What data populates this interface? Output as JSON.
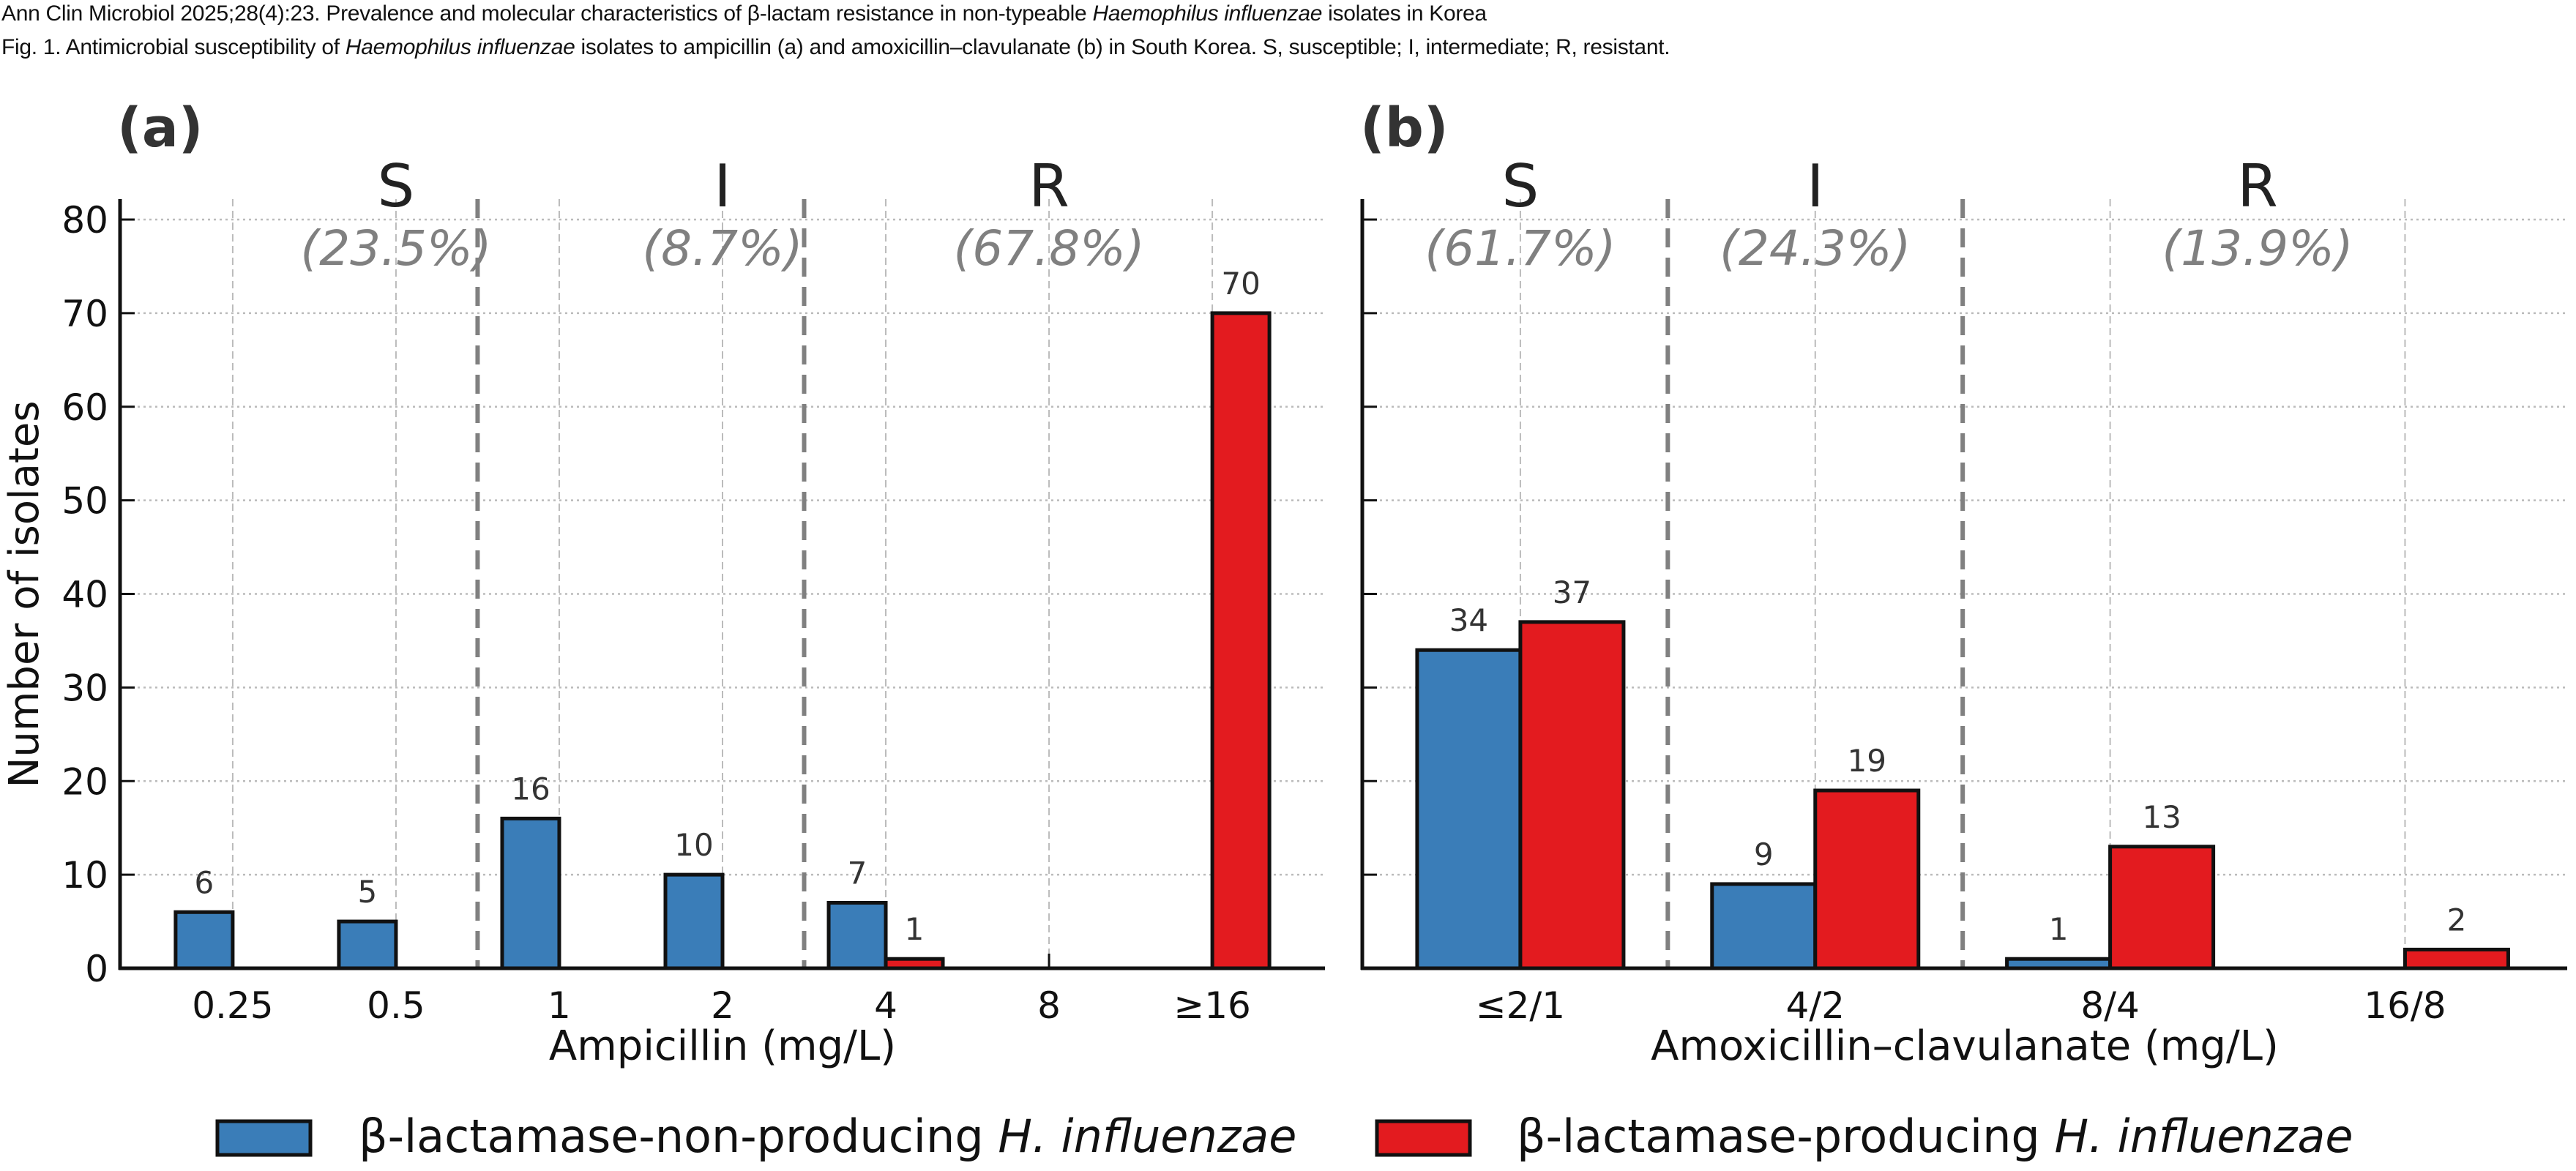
{
  "header": {
    "line1_prefix": "Ann Clin Microbiol 2025;28(4):23. Prevalence and molecular characteristics of β-lactam resistance in non-typeable ",
    "line1_italic": "Haemophilus influenzae",
    "line1_suffix": " isolates in Korea",
    "line2_prefix": "Fig. 1. Antimicrobial susceptibility of ",
    "line2_italic": "Haemophilus influenzae",
    "line2_suffix": " isolates to ampicillin (a) and amoxicillin–clavulanate (b) in South Korea. S, susceptible; I, intermediate; R, resistant."
  },
  "colors": {
    "non_producing": "#3a7db8",
    "producing": "#e31b1f",
    "bar_edge": "#111111",
    "category_label": "#222222",
    "percent_label": "#808080",
    "breakpoint_line": "#808080",
    "grid": "#bbbbbb"
  },
  "legend": {
    "position": "bottom-center",
    "items": [
      {
        "prefix": "β-lactamase-non-producing ",
        "italic": "H. influenzae",
        "series": "non_producing"
      },
      {
        "prefix": "β-lactamase-producing ",
        "italic": "H. influenzae",
        "series": "producing"
      }
    ]
  },
  "chart_data": [
    {
      "type": "bar",
      "panel_label": "(a)",
      "title": "",
      "xlabel": "Ampicillin (mg/L)",
      "ylabel": "Number of isolates",
      "ylim": [
        0,
        84
      ],
      "yticks": [
        0,
        10,
        20,
        30,
        40,
        50,
        60,
        70,
        80
      ],
      "grid": true,
      "categories": [
        "0.25",
        "0.5",
        "1",
        "2",
        "4",
        "8",
        "≥16"
      ],
      "series": [
        {
          "name": "β-lactamase-non-producing H. influenzae",
          "key": "non_producing",
          "values": [
            6,
            5,
            16,
            10,
            7,
            0,
            0
          ],
          "labels": [
            "6",
            "5",
            "16",
            "10",
            "7",
            "",
            ""
          ]
        },
        {
          "name": "β-lactamase-producing H. influenzae",
          "key": "producing",
          "values": [
            0,
            0,
            0,
            0,
            1,
            0,
            70
          ],
          "labels": [
            "",
            "",
            "",
            "",
            "1",
            "",
            "70"
          ]
        }
      ],
      "breakpoints": [
        1.5,
        3.5
      ],
      "zones": [
        {
          "label": "S",
          "percent": "(23.5%)",
          "center": 1
        },
        {
          "label": "I",
          "percent": "(8.7%)",
          "center": 3
        },
        {
          "label": "R",
          "percent": "(67.8%)",
          "center": 5
        }
      ]
    },
    {
      "type": "bar",
      "panel_label": "(b)",
      "title": "",
      "xlabel": "Amoxicillin–clavulanate (mg/L)",
      "ylabel": "",
      "ylim": [
        0,
        84
      ],
      "yticks": [
        0,
        10,
        20,
        30,
        40,
        50,
        60,
        70,
        80
      ],
      "grid": true,
      "categories": [
        "≤2/1",
        "4/2",
        "8/4",
        "16/8"
      ],
      "series": [
        {
          "name": "β-lactamase-non-producing H. influenzae",
          "key": "non_producing",
          "values": [
            34,
            9,
            1,
            0
          ],
          "labels": [
            "34",
            "9",
            "1",
            ""
          ]
        },
        {
          "name": "β-lactamase-producing H. influenzae",
          "key": "producing",
          "values": [
            37,
            19,
            13,
            2
          ],
          "labels": [
            "37",
            "19",
            "13",
            "2"
          ]
        }
      ],
      "breakpoints": [
        0.5,
        1.5
      ],
      "zones": [
        {
          "label": "S",
          "percent": "(61.7%)",
          "center": 0
        },
        {
          "label": "I",
          "percent": "(24.3%)",
          "center": 1
        },
        {
          "label": "R",
          "percent": "(13.9%)",
          "center": 2.5
        }
      ]
    }
  ]
}
